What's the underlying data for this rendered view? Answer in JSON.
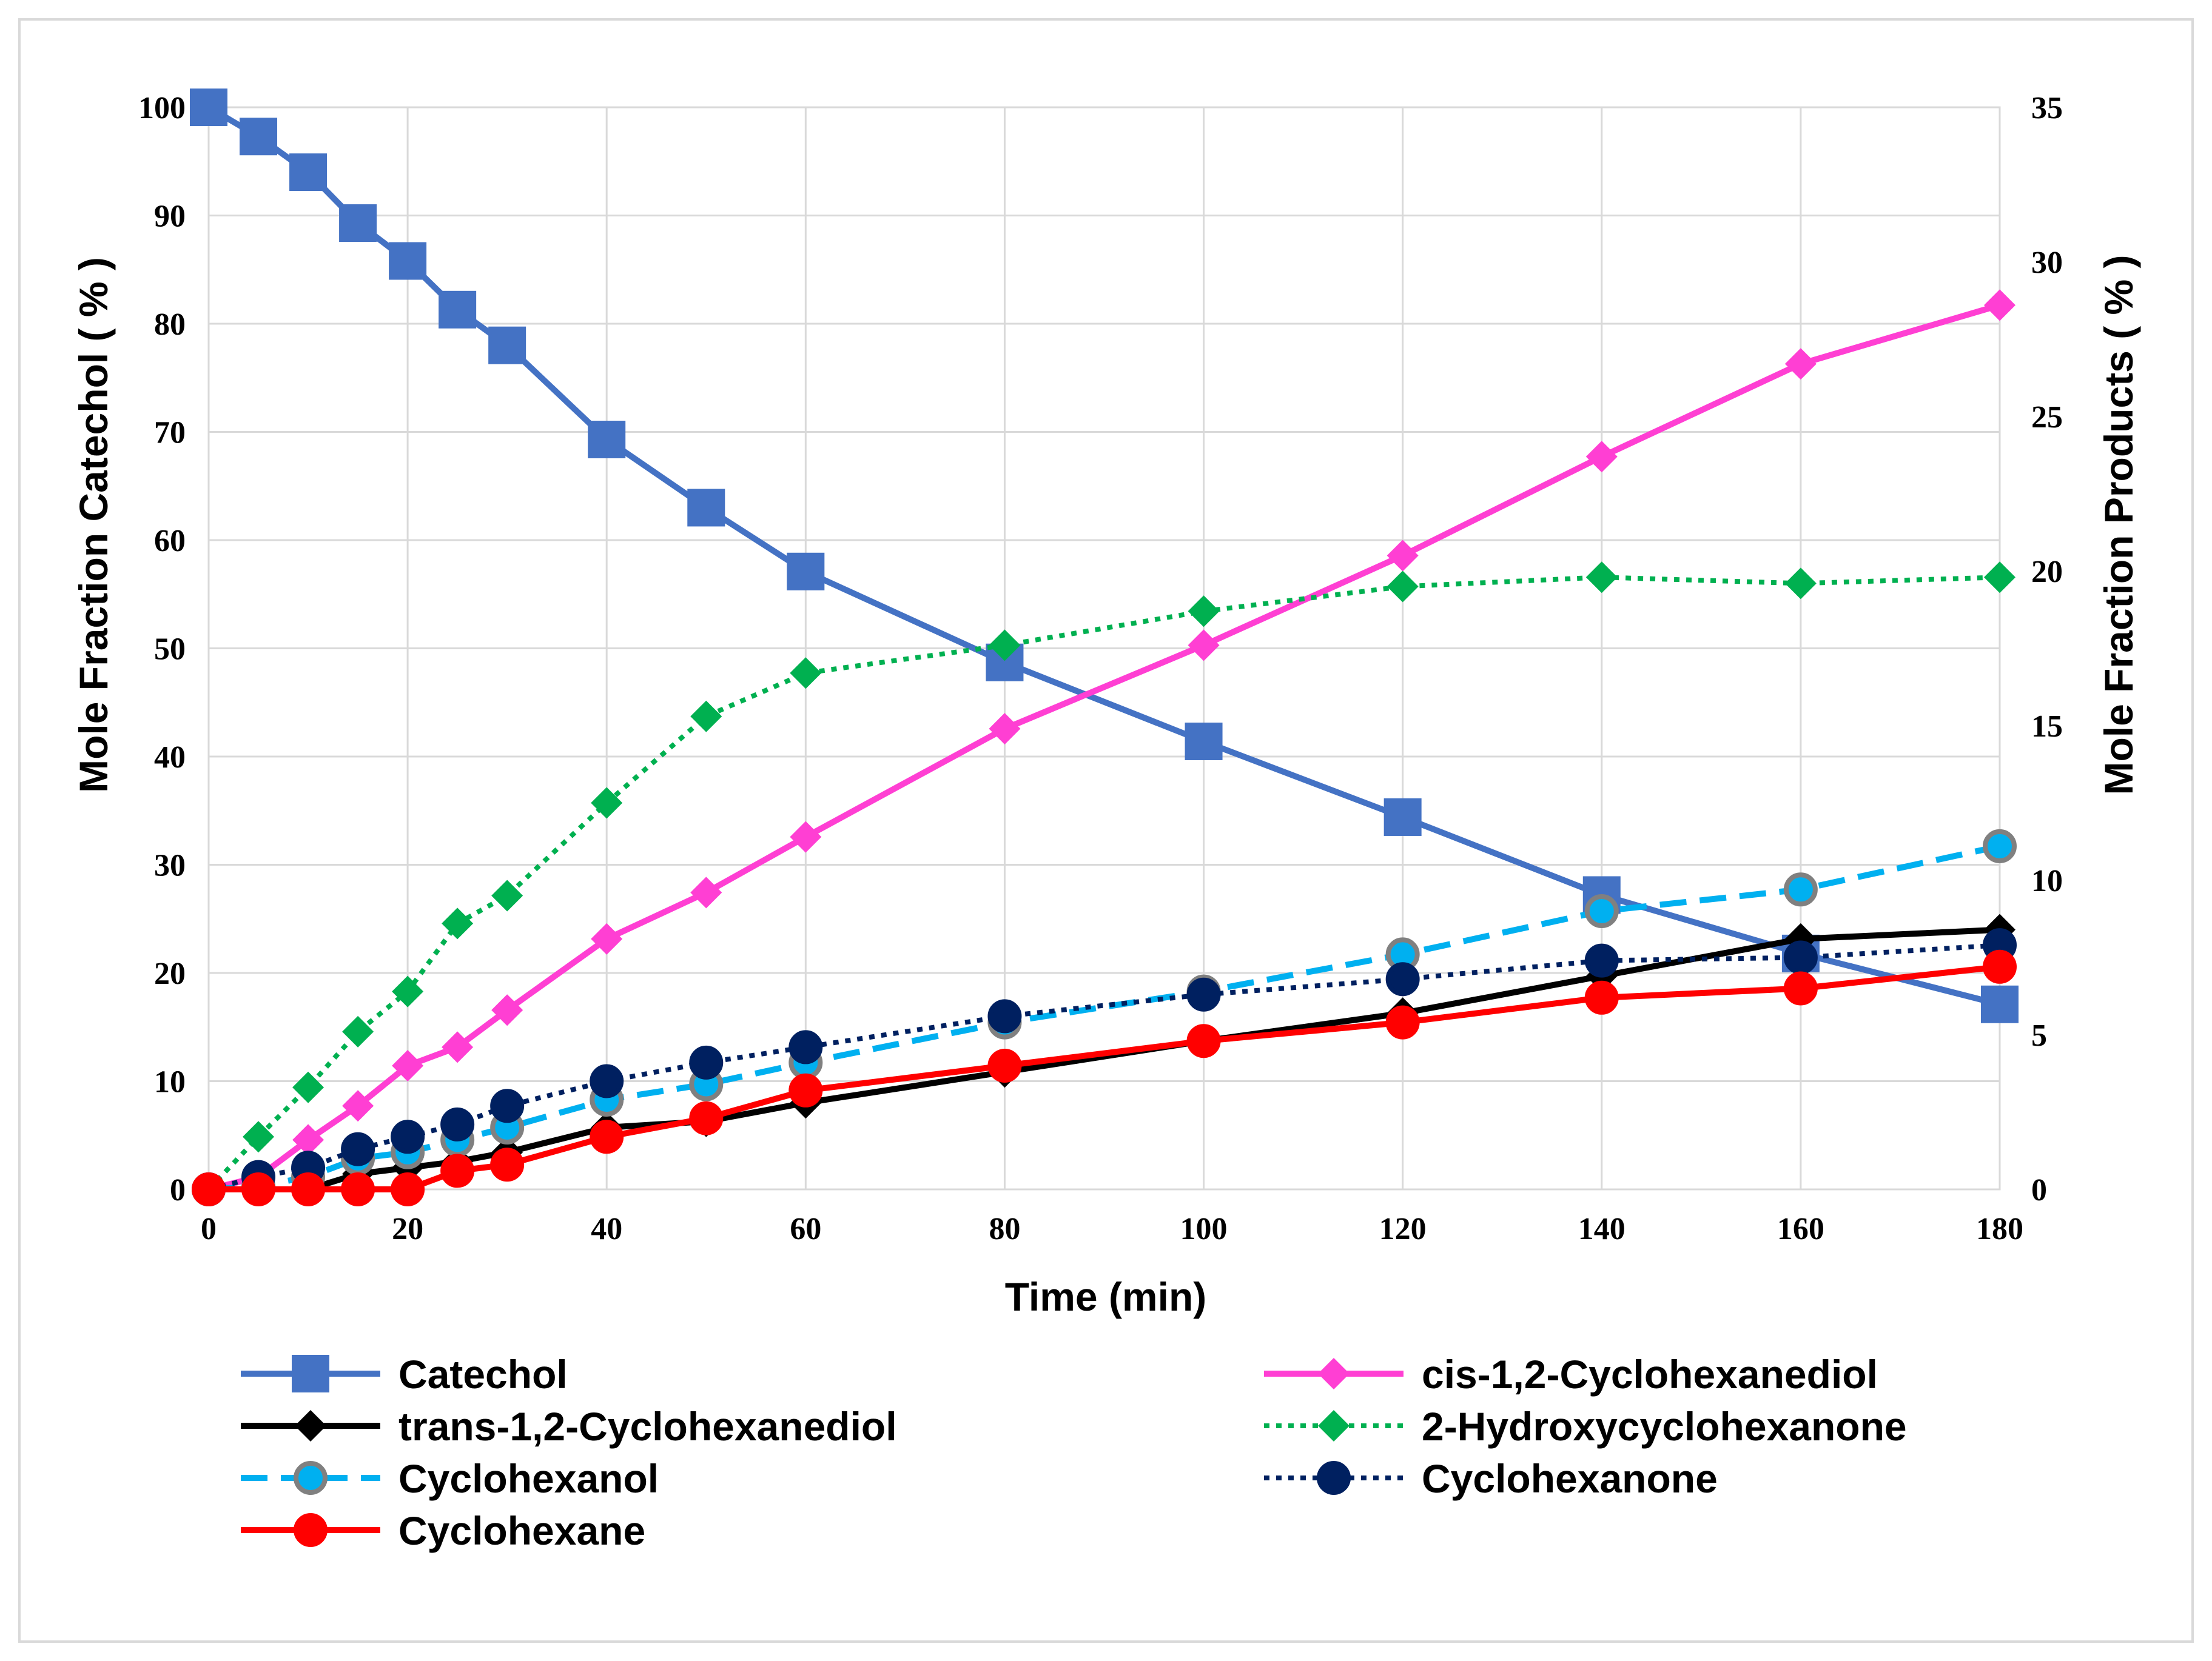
{
  "chart_data": {
    "type": "line",
    "title": "",
    "xlabel": "Time (min)",
    "ylabel": "Mole Fraction Catechol ( % )",
    "y2label": "Mole Fraction Products ( % )",
    "xlim": [
      0,
      180
    ],
    "ylim": [
      0,
      100
    ],
    "y2lim": [
      0,
      35
    ],
    "x_ticks": [
      0,
      20,
      40,
      60,
      80,
      100,
      120,
      140,
      160,
      180
    ],
    "y_ticks": [
      0,
      10,
      20,
      30,
      40,
      50,
      60,
      70,
      80,
      90,
      100
    ],
    "y2_ticks": [
      0,
      5,
      10,
      15,
      20,
      25,
      30,
      35
    ],
    "grid": true,
    "legend_position": "bottom",
    "series": [
      {
        "name": "Catechol",
        "axis": "left",
        "color": "#4472C4",
        "marker": "square",
        "dash": "solid",
        "x": [
          0,
          5,
          10,
          15,
          20,
          25,
          30,
          40,
          50,
          60,
          80,
          100,
          120,
          140,
          160,
          180
        ],
        "values": [
          100,
          97.3,
          94,
          89.3,
          85.8,
          81.3,
          78,
          69.3,
          63,
          57.1,
          48.7,
          41.4,
          34.4,
          27.2,
          21.8,
          17.1
        ]
      },
      {
        "name": "cis-1,2-Cyclohexanediol",
        "axis": "right",
        "color": "#FF3FD3",
        "marker": "diamond",
        "dash": "solid",
        "x": [
          0,
          5,
          10,
          15,
          20,
          25,
          30,
          40,
          50,
          60,
          80,
          100,
          120,
          140,
          160,
          180
        ],
        "values": [
          0,
          0.4,
          1.6,
          2.7,
          4.0,
          4.6,
          5.8,
          8.1,
          9.6,
          11.4,
          14.9,
          17.6,
          20.5,
          23.7,
          26.7,
          28.6
        ]
      },
      {
        "name": "trans-1,2-Cyclohexanediol",
        "axis": "right",
        "color": "#000000",
        "marker": "diamond",
        "dash": "solid",
        "x": [
          0,
          5,
          10,
          15,
          20,
          25,
          30,
          40,
          50,
          60,
          80,
          100,
          120,
          140,
          160,
          180
        ],
        "values": [
          0,
          0,
          0,
          0.5,
          0.7,
          0.9,
          1.2,
          2.0,
          2.2,
          2.8,
          3.8,
          4.8,
          5.7,
          6.9,
          8.1,
          8.4
        ]
      },
      {
        "name": "2-Hydroxycyclohexanone",
        "axis": "right",
        "color": "#00B050",
        "marker": "diamond",
        "dash": "dotted",
        "x": [
          0,
          5,
          10,
          15,
          20,
          25,
          30,
          40,
          50,
          60,
          80,
          100,
          120,
          140,
          160,
          180
        ],
        "values": [
          0,
          1.7,
          3.3,
          5.1,
          6.4,
          8.6,
          9.5,
          12.5,
          15.3,
          16.7,
          17.6,
          18.7,
          19.5,
          19.8,
          19.6,
          19.8
        ]
      },
      {
        "name": "Cyclohexanol",
        "axis": "right",
        "color": "#00B0F0",
        "marker": "circle",
        "dash": "dashed",
        "x": [
          0,
          5,
          10,
          15,
          20,
          25,
          30,
          40,
          50,
          60,
          80,
          100,
          120,
          140,
          160,
          180
        ],
        "values": [
          0,
          0.1,
          0.4,
          1.0,
          1.2,
          1.6,
          2.0,
          2.9,
          3.4,
          4.1,
          5.4,
          6.4,
          7.6,
          9.0,
          9.7,
          11.1
        ]
      },
      {
        "name": "Cyclohexanone",
        "axis": "right",
        "color": "#002060",
        "marker": "circle",
        "dash": "dotted",
        "x": [
          0,
          5,
          10,
          15,
          20,
          25,
          30,
          40,
          50,
          60,
          80,
          100,
          120,
          140,
          160,
          180
        ],
        "values": [
          0,
          0.4,
          0.7,
          1.3,
          1.7,
          2.1,
          2.7,
          3.5,
          4.1,
          4.6,
          5.6,
          6.3,
          6.8,
          7.4,
          7.5,
          7.9
        ]
      },
      {
        "name": "Cyclohexane",
        "axis": "right",
        "color": "#FF0000",
        "marker": "circle",
        "dash": "solid",
        "x": [
          0,
          5,
          10,
          15,
          20,
          25,
          30,
          40,
          50,
          60,
          80,
          100,
          120,
          140,
          160,
          180
        ],
        "values": [
          0,
          0,
          0,
          0,
          0,
          0.6,
          0.8,
          1.7,
          2.3,
          3.2,
          4.0,
          4.8,
          5.4,
          6.2,
          6.5,
          7.2
        ]
      }
    ]
  }
}
